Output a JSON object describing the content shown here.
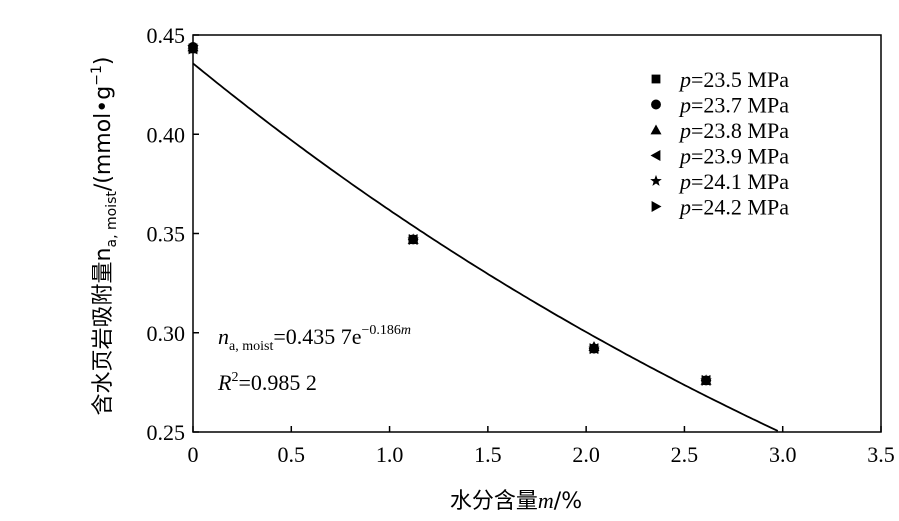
{
  "chart_data": {
    "type": "scatter",
    "xlabel": "水分含量m/%",
    "ylabel": "含水页岩吸附量n",
    "ylabel_sub": "a, moist",
    "ylabel_unit": "/(mmol•g",
    "ylabel_unit_sup": "−1",
    "ylabel_close": ")",
    "xlim": [
      0,
      3.5
    ],
    "ylim": [
      0.25,
      0.45
    ],
    "xticks": [
      "0",
      "0.5",
      "1.0",
      "1.5",
      "2.0",
      "2.5",
      "3.0",
      "3.5"
    ],
    "yticks": [
      "0.25",
      "0.30",
      "0.35",
      "0.40",
      "0.45"
    ],
    "grid": false,
    "legend_position": "top-right",
    "legend_prefix": "p",
    "series": [
      {
        "name": "=23.5 MPa",
        "marker": "square",
        "points": [
          [
            0,
            0.443
          ],
          [
            1.12,
            0.347
          ],
          [
            2.04,
            0.292
          ],
          [
            2.61,
            0.276
          ]
        ]
      },
      {
        "name": "=23.7 MPa",
        "marker": "circle",
        "points": [
          [
            0,
            0.444
          ],
          [
            1.12,
            0.347
          ],
          [
            2.04,
            0.292
          ],
          [
            2.61,
            0.276
          ]
        ]
      },
      {
        "name": "=23.8 MPa",
        "marker": "triangle-up",
        "points": [
          [
            0,
            0.444
          ],
          [
            1.12,
            0.347
          ],
          [
            2.04,
            0.293
          ],
          [
            2.61,
            0.276
          ]
        ]
      },
      {
        "name": "=23.9 MPa",
        "marker": "triangle-left",
        "points": [
          [
            0,
            0.443
          ],
          [
            1.12,
            0.347
          ],
          [
            2.04,
            0.292
          ],
          [
            2.61,
            0.276
          ]
        ]
      },
      {
        "name": "=24.1 MPa",
        "marker": "star",
        "points": [
          [
            0,
            0.444
          ],
          [
            1.12,
            0.347
          ],
          [
            2.04,
            0.292
          ],
          [
            2.61,
            0.276
          ]
        ]
      },
      {
        "name": "=24.2 MPa",
        "marker": "triangle-right",
        "points": [
          [
            0,
            0.443
          ],
          [
            1.12,
            0.347
          ],
          [
            2.04,
            0.292
          ],
          [
            2.61,
            0.276
          ]
        ]
      }
    ],
    "fit": {
      "a": 0.4357,
      "b": -0.186
    },
    "annotation": {
      "eq_var": "n",
      "eq_sub": "a, moist",
      "eq_main": "=0.435 7e",
      "eq_exp": "−0.186",
      "eq_exp_var": "m",
      "r2_var": "R",
      "r2_sup": "2",
      "r2_val": "=0.985 2"
    }
  }
}
